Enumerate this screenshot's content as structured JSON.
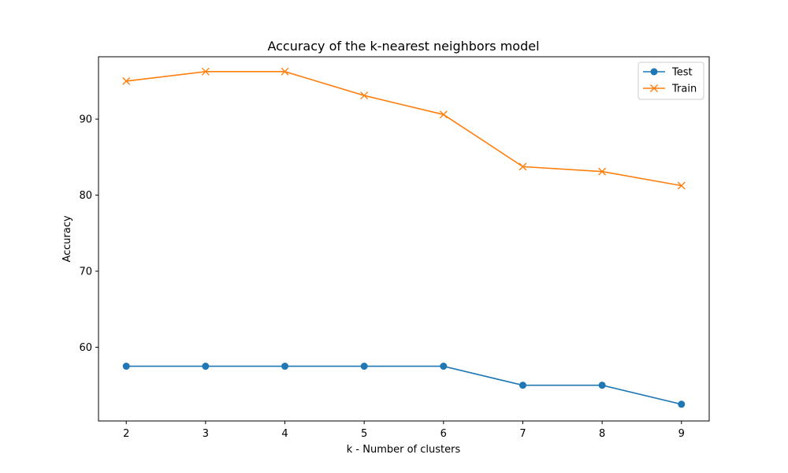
{
  "chart_data": {
    "type": "line",
    "title": "Accuracy of the k-nearest neighbors model",
    "xlabel": "k - Number of clusters",
    "ylabel": "Accuracy",
    "x": [
      2,
      3,
      4,
      5,
      6,
      7,
      8,
      9
    ],
    "xticks": [
      "2",
      "3",
      "4",
      "5",
      "6",
      "7",
      "8",
      "9"
    ],
    "yticks": [
      "60",
      "70",
      "80",
      "90"
    ],
    "xlim": [
      1.65,
      9.35
    ],
    "ylim": [
      50.3,
      98.2
    ],
    "grid": false,
    "legend_position": "top-right",
    "series": [
      {
        "name": "Test",
        "marker": "circle",
        "color": "#1f77b4",
        "values": [
          57.5,
          57.5,
          57.5,
          57.5,
          57.5,
          55.0,
          55.0,
          52.5
        ]
      },
      {
        "name": "Train",
        "marker": "x",
        "color": "#ff7f0e",
        "values": [
          95.0,
          96.25,
          96.25,
          93.1,
          90.6,
          83.75,
          83.1,
          81.25
        ]
      }
    ]
  }
}
